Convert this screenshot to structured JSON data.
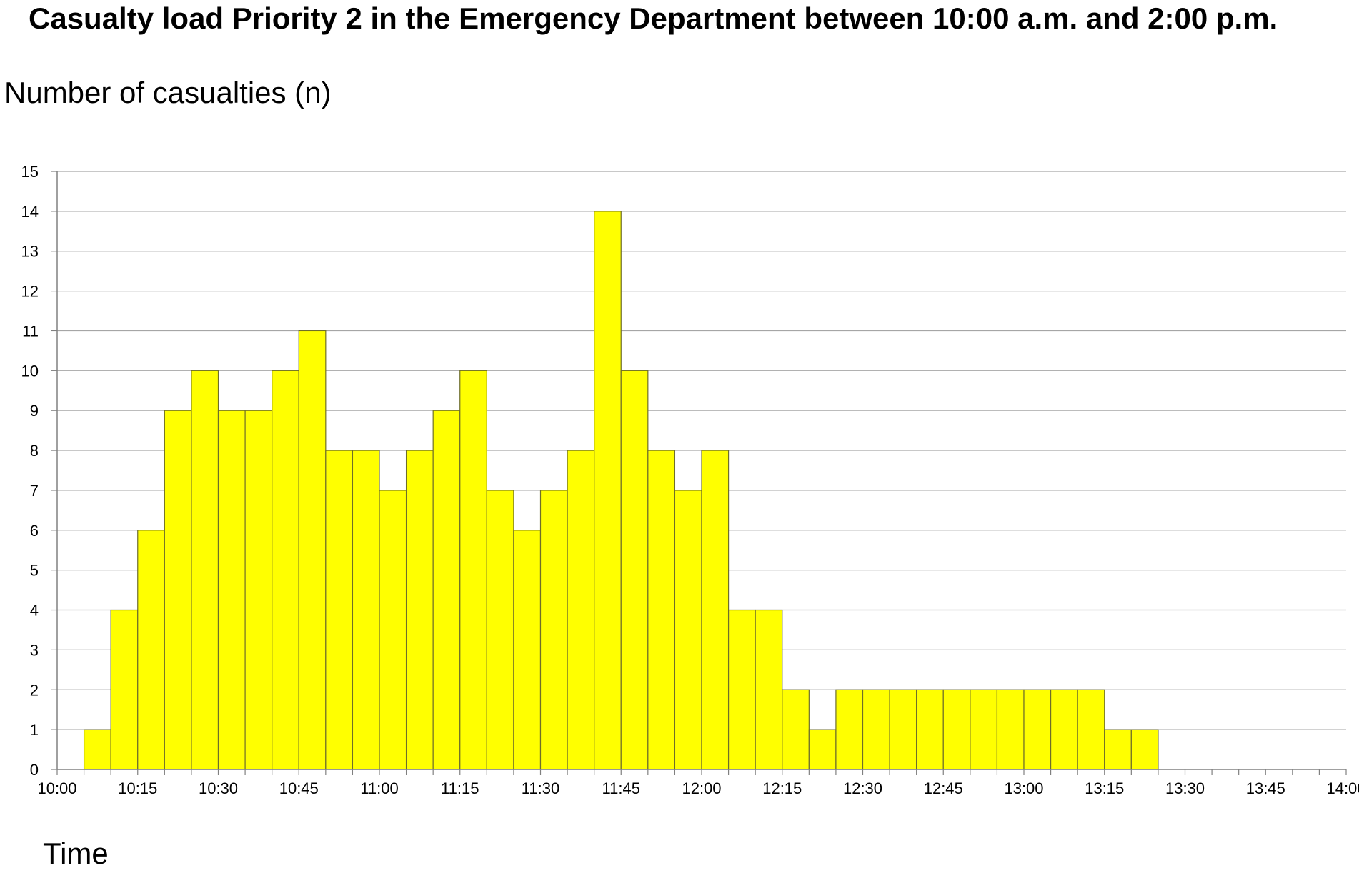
{
  "chart_data": {
    "type": "bar",
    "title": "Casualty load Priority 2 in the Emergency Department between 10:00 a.m. and 2:00 p.m.",
    "ylabel": "Number of casualties (n)",
    "xlabel": "Time",
    "ylim": [
      0,
      15
    ],
    "yticks": [
      "0",
      "1",
      "2",
      "3",
      "4",
      "5",
      "6",
      "7",
      "8",
      "9",
      "10",
      "11",
      "12",
      "13",
      "14",
      "15"
    ],
    "xtick_labels": [
      "10:00",
      "10:15",
      "10:30",
      "10:45",
      "11:00",
      "11:15",
      "11:30",
      "11:45",
      "12:00",
      "12:15",
      "12:30",
      "12:45",
      "13:00",
      "13:15",
      "13:30",
      "13:45",
      "14:00"
    ],
    "grid": true,
    "bar_color": "#ffff00",
    "bin_minutes": 5,
    "start_time": "10:00",
    "end_time": "14:00",
    "values": [
      0,
      1,
      4,
      6,
      9,
      10,
      9,
      9,
      10,
      11,
      8,
      8,
      7,
      8,
      9,
      10,
      7,
      6,
      7,
      8,
      14,
      10,
      8,
      7,
      8,
      4,
      4,
      2,
      1,
      2,
      2,
      2,
      2,
      2,
      2,
      2,
      2,
      2,
      2,
      1,
      1,
      0,
      0,
      0,
      0,
      0,
      0,
      0
    ]
  }
}
